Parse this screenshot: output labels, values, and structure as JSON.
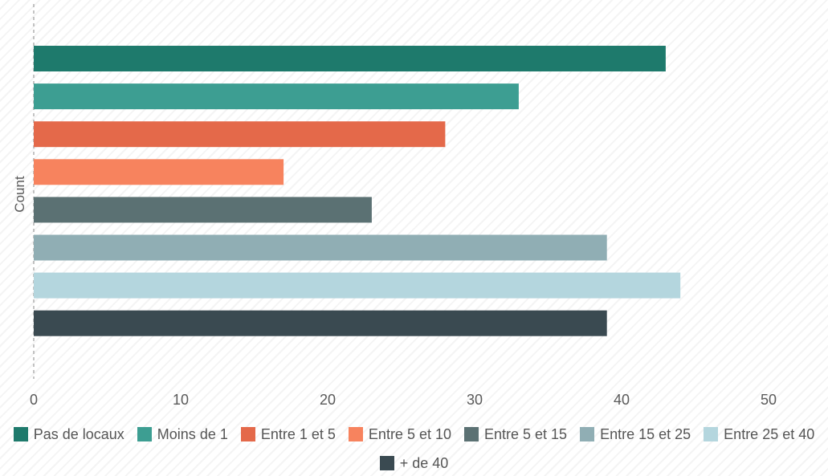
{
  "chart_data": {
    "type": "bar",
    "orientation": "horizontal",
    "title": "",
    "ylabel": "Count",
    "xlabel": "",
    "xlim": [
      0,
      50
    ],
    "x_ticks": [
      "0",
      "10",
      "20",
      "30",
      "40",
      "50"
    ],
    "grid": false,
    "legend_position": "bottom",
    "series": [
      {
        "name": "Pas de locaux",
        "value": 43,
        "color": "#1e7a6c"
      },
      {
        "name": "Moins de 1",
        "value": 33,
        "color": "#3d9e92"
      },
      {
        "name": "Entre 1 et 5",
        "value": 28,
        "color": "#e4694a"
      },
      {
        "name": "Entre 5 et 10",
        "value": 17,
        "color": "#f7835e"
      },
      {
        "name": "Entre 5 et 15",
        "value": 23,
        "color": "#5b7173"
      },
      {
        "name": "Entre 15 et 25",
        "value": 39,
        "color": "#90aeb4"
      },
      {
        "name": "Entre 25 et 40",
        "value": 44,
        "color": "#b4d6de"
      },
      {
        "name": "+ de 40",
        "value": 39,
        "color": "#3a4a51"
      }
    ]
  }
}
